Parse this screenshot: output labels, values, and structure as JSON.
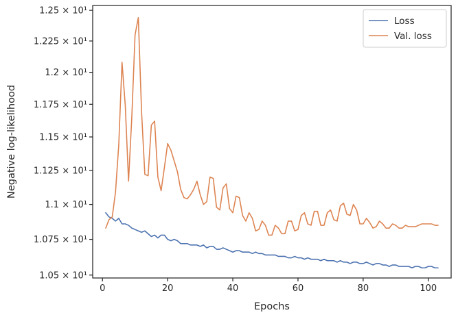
{
  "chart_data": {
    "type": "line",
    "title": "",
    "xlabel": "Epochs",
    "ylabel": "Negative log-likelihood",
    "yscale": "log",
    "xlim": [
      -3,
      107
    ],
    "ylim": [
      10.48,
      12.54
    ],
    "grid": false,
    "legend_position": "top-right",
    "x_ticks": [
      {
        "value": 0,
        "label": "0"
      },
      {
        "value": 20,
        "label": "20"
      },
      {
        "value": 40,
        "label": "40"
      },
      {
        "value": 60,
        "label": "60"
      },
      {
        "value": 80,
        "label": "80"
      },
      {
        "value": 100,
        "label": "100"
      }
    ],
    "y_ticks": [
      {
        "value": 10.5,
        "label": "1.05 × 10¹"
      },
      {
        "value": 10.75,
        "label": "1.075 × 10¹"
      },
      {
        "value": 11.0,
        "label": "1.1 × 10¹"
      },
      {
        "value": 11.25,
        "label": "1.125 × 10¹"
      },
      {
        "value": 11.5,
        "label": "1.15 × 10¹"
      },
      {
        "value": 11.75,
        "label": "1.175 × 10¹"
      },
      {
        "value": 12.0,
        "label": "1.2 × 10¹"
      },
      {
        "value": 12.25,
        "label": "1.225 × 10¹"
      },
      {
        "value": 12.5,
        "label": "1.25 × 10¹"
      }
    ],
    "series": [
      {
        "name": "Loss",
        "color": "#4c72b0",
        "x": [
          1,
          2,
          3,
          4,
          5,
          6,
          7,
          8,
          9,
          10,
          11,
          12,
          13,
          14,
          15,
          16,
          17,
          18,
          19,
          20,
          21,
          22,
          23,
          24,
          25,
          26,
          27,
          28,
          29,
          30,
          31,
          32,
          33,
          34,
          35,
          36,
          37,
          38,
          39,
          40,
          41,
          42,
          43,
          44,
          45,
          46,
          47,
          48,
          49,
          50,
          51,
          52,
          53,
          54,
          55,
          56,
          57,
          58,
          59,
          60,
          61,
          62,
          63,
          64,
          65,
          66,
          67,
          68,
          69,
          70,
          71,
          72,
          73,
          74,
          75,
          76,
          77,
          78,
          79,
          80,
          81,
          82,
          83,
          84,
          85,
          86,
          87,
          88,
          89,
          90,
          91,
          92,
          93,
          94,
          95,
          96,
          97,
          98,
          99,
          100,
          101,
          102,
          103
        ],
        "y": [
          10.94,
          10.91,
          10.9,
          10.88,
          10.9,
          10.86,
          10.86,
          10.85,
          10.83,
          10.82,
          10.81,
          10.8,
          10.81,
          10.79,
          10.77,
          10.78,
          10.76,
          10.78,
          10.78,
          10.75,
          10.74,
          10.75,
          10.74,
          10.72,
          10.72,
          10.72,
          10.71,
          10.71,
          10.71,
          10.7,
          10.71,
          10.69,
          10.7,
          10.7,
          10.68,
          10.68,
          10.69,
          10.68,
          10.67,
          10.66,
          10.67,
          10.67,
          10.66,
          10.66,
          10.66,
          10.65,
          10.66,
          10.65,
          10.65,
          10.64,
          10.64,
          10.64,
          10.64,
          10.63,
          10.63,
          10.63,
          10.62,
          10.62,
          10.63,
          10.62,
          10.62,
          10.61,
          10.62,
          10.61,
          10.61,
          10.61,
          10.6,
          10.61,
          10.6,
          10.6,
          10.6,
          10.59,
          10.6,
          10.59,
          10.59,
          10.58,
          10.59,
          10.59,
          10.58,
          10.58,
          10.59,
          10.58,
          10.57,
          10.58,
          10.58,
          10.57,
          10.57,
          10.56,
          10.57,
          10.57,
          10.56,
          10.56,
          10.56,
          10.56,
          10.55,
          10.56,
          10.56,
          10.55,
          10.55,
          10.56,
          10.56,
          10.55,
          10.55
        ]
      },
      {
        "name": "Val. loss",
        "color": "#dd8452",
        "x": [
          1,
          2,
          3,
          4,
          5,
          6,
          7,
          8,
          9,
          10,
          11,
          12,
          13,
          14,
          15,
          16,
          17,
          18,
          19,
          20,
          21,
          22,
          23,
          24,
          25,
          26,
          27,
          28,
          29,
          30,
          31,
          32,
          33,
          34,
          35,
          36,
          37,
          38,
          39,
          40,
          41,
          42,
          43,
          44,
          45,
          46,
          47,
          48,
          49,
          50,
          51,
          52,
          53,
          54,
          55,
          56,
          57,
          58,
          59,
          60,
          61,
          62,
          63,
          64,
          65,
          66,
          67,
          68,
          69,
          70,
          71,
          72,
          73,
          74,
          75,
          76,
          77,
          78,
          79,
          80,
          81,
          82,
          83,
          84,
          85,
          86,
          87,
          88,
          89,
          90,
          91,
          92,
          93,
          94,
          95,
          96,
          97,
          98,
          99,
          100,
          101,
          102,
          103
        ],
        "y": [
          10.83,
          10.89,
          10.91,
          11.09,
          11.44,
          12.08,
          11.74,
          11.17,
          11.65,
          12.3,
          12.44,
          11.69,
          11.22,
          11.21,
          11.59,
          11.62,
          11.2,
          11.1,
          11.27,
          11.45,
          11.4,
          11.32,
          11.24,
          11.11,
          11.05,
          11.04,
          11.07,
          11.11,
          11.17,
          11.07,
          11.0,
          11.02,
          11.2,
          11.19,
          10.98,
          10.96,
          11.12,
          11.15,
          10.97,
          10.94,
          11.06,
          11.05,
          10.92,
          10.88,
          10.94,
          10.9,
          10.81,
          10.82,
          10.88,
          10.85,
          10.78,
          10.78,
          10.85,
          10.83,
          10.79,
          10.79,
          10.88,
          10.88,
          10.81,
          10.82,
          10.92,
          10.94,
          10.86,
          10.85,
          10.95,
          10.95,
          10.85,
          10.85,
          10.94,
          10.96,
          10.89,
          10.88,
          10.99,
          11.01,
          10.93,
          10.92,
          11.0,
          10.96,
          10.86,
          10.86,
          10.9,
          10.87,
          10.83,
          10.84,
          10.88,
          10.86,
          10.83,
          10.83,
          10.86,
          10.85,
          10.83,
          10.83,
          10.85,
          10.84,
          10.84,
          10.84,
          10.85,
          10.86,
          10.86,
          10.86,
          10.86,
          10.85,
          10.85
        ]
      }
    ]
  }
}
